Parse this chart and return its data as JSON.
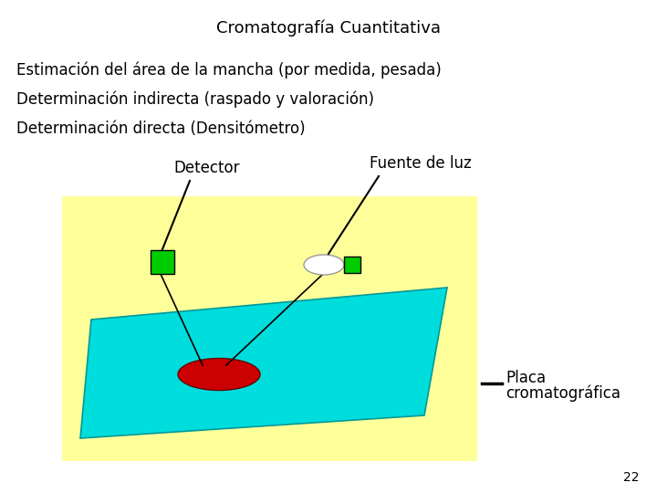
{
  "title": "Cromatografía Cuantitativa",
  "line1": "Estimación del área de la mancha (por medida, pesada)",
  "line2": "Determinación indirecta (raspado y valoración)",
  "line3": "Determinación directa (Densitómetro)",
  "label_detector": "Detector",
  "label_fuente": "Fuente de luz",
  "label_placa1": "Placa",
  "label_placa2": "cromatográfica",
  "page_num": "22",
  "bg_color": "#ffffff",
  "yellow_bg": "#ffff99",
  "cyan_plate": "#00dddd",
  "red_spot": "#cc0000",
  "green_detector": "#00cc00",
  "green_filter": "#00cc00",
  "title_fontsize": 13,
  "text_fontsize": 12,
  "label_fontsize": 12
}
